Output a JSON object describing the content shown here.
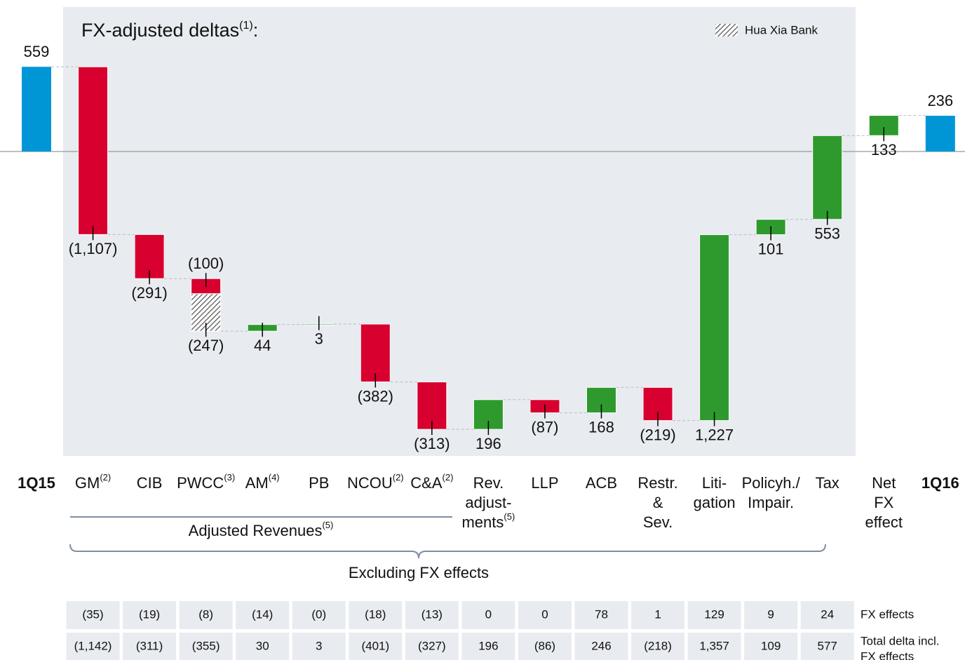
{
  "chart_data": {
    "type": "waterfall",
    "title": "FX-adjusted deltas",
    "title_note": "(1)",
    "title_end": ":",
    "legend": {
      "label": "Hua Xia Bank",
      "pattern": "hatch"
    },
    "categories": [
      {
        "lines": [
          "1Q15"
        ],
        "bold": true
      },
      {
        "lines": [
          "GM"
        ],
        "sup": "(2)"
      },
      {
        "lines": [
          "CIB"
        ]
      },
      {
        "lines": [
          "PWCC"
        ],
        "sup": "(3)"
      },
      null,
      {
        "lines": [
          "AM"
        ],
        "sup": "(4)"
      },
      {
        "lines": [
          "PB"
        ]
      },
      {
        "lines": [
          "NCOU"
        ],
        "sup": "(2)"
      },
      {
        "lines": [
          "C&A"
        ],
        "sup": "(2)"
      },
      {
        "lines": [
          "Rev.",
          "adjust-",
          "ments"
        ],
        "sup": "(5)"
      },
      {
        "lines": [
          "LLP"
        ]
      },
      {
        "lines": [
          "ACB"
        ]
      },
      {
        "lines": [
          "Restr.",
          "&",
          "Sev."
        ]
      },
      {
        "lines": [
          "Liti-",
          "gation"
        ]
      },
      {
        "lines": [
          "Policyh./",
          "Impair."
        ]
      },
      {
        "lines": [
          "Tax"
        ]
      },
      {
        "lines": [
          "Net",
          "FX",
          "effect"
        ]
      },
      {
        "lines": [
          "1Q16"
        ],
        "bold": true
      }
    ],
    "values": [
      559,
      -1107,
      -291,
      -100,
      -247,
      44,
      3,
      -382,
      -313,
      196,
      -87,
      168,
      -219,
      1227,
      101,
      553,
      133,
      236
    ],
    "value_labels": [
      "559",
      "(1,107)",
      "(291)",
      "(100)",
      "(247)",
      "44",
      "3",
      "(382)",
      "(313)",
      "196",
      "(87)",
      "168",
      "(219)",
      "1,227",
      "101",
      "553",
      "133",
      "236"
    ],
    "kinds": [
      "total",
      "delta",
      "delta",
      "delta",
      "hatch",
      "delta",
      "delta",
      "delta",
      "delta",
      "delta",
      "delta",
      "delta",
      "delta",
      "delta",
      "delta",
      "delta",
      "delta",
      "total"
    ],
    "colors": {
      "total": "#0096d6",
      "up": "#2e9a2e",
      "down": "#d7002e"
    },
    "groups": [
      {
        "label": "Adjusted Revenues",
        "sup": "(5)"
      },
      {
        "label": "Excluding FX effects"
      }
    ]
  },
  "table": {
    "rows": [
      {
        "label": [
          "FX effects"
        ],
        "cells": [
          "(35)",
          "(19)",
          "(8)",
          "(14)",
          "(0)",
          "(18)",
          "(13)",
          "0",
          "0",
          "78",
          "1",
          "129",
          "9",
          "24"
        ]
      },
      {
        "label": [
          "Total delta incl.",
          "FX effects"
        ],
        "cells": [
          "(1,142)",
          "(311)",
          "(355)",
          "30",
          "3",
          "(401)",
          "(327)",
          "196",
          "(86)",
          "246",
          "(218)",
          "1,357",
          "109",
          "577"
        ]
      }
    ]
  }
}
